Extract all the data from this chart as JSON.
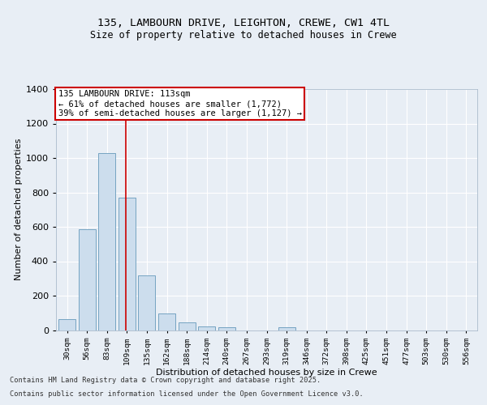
{
  "title1": "135, LAMBOURN DRIVE, LEIGHTON, CREWE, CW1 4TL",
  "title2": "Size of property relative to detached houses in Crewe",
  "xlabel": "Distribution of detached houses by size in Crewe",
  "ylabel": "Number of detached properties",
  "categories": [
    "30sqm",
    "56sqm",
    "83sqm",
    "109sqm",
    "135sqm",
    "162sqm",
    "188sqm",
    "214sqm",
    "240sqm",
    "267sqm",
    "293sqm",
    "319sqm",
    "346sqm",
    "372sqm",
    "398sqm",
    "425sqm",
    "451sqm",
    "477sqm",
    "503sqm",
    "530sqm",
    "556sqm"
  ],
  "values": [
    65,
    585,
    1030,
    770,
    320,
    95,
    45,
    20,
    15,
    0,
    0,
    15,
    0,
    0,
    0,
    0,
    0,
    0,
    0,
    0,
    0
  ],
  "bar_color": "#ccdded",
  "bar_edge_color": "#6699bb",
  "red_line_index": 3,
  "annotation_line1": "135 LAMBOURN DRIVE: 113sqm",
  "annotation_line2": "← 61% of detached houses are smaller (1,772)",
  "annotation_line3": "39% of semi-detached houses are larger (1,127) →",
  "annotation_box_facecolor": "#ffffff",
  "annotation_box_edgecolor": "#cc0000",
  "ylim": [
    0,
    1400
  ],
  "yticks": [
    0,
    200,
    400,
    600,
    800,
    1000,
    1200,
    1400
  ],
  "footer1": "Contains HM Land Registry data © Crown copyright and database right 2025.",
  "footer2": "Contains public sector information licensed under the Open Government Licence v3.0.",
  "bg_color": "#e8eef5",
  "grid_color": "#ffffff",
  "title1_fontsize": 9.5,
  "title2_fontsize": 8.5
}
